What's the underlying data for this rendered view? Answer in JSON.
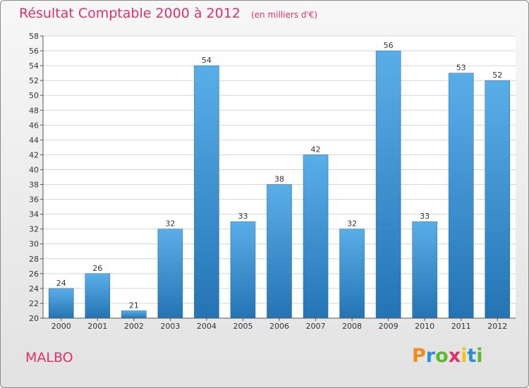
{
  "title": "Résultat Comptable 2000 à 2012",
  "subtitle": "(en milliers d'€)",
  "place": "MALBO",
  "logo": {
    "text": "Proxiti",
    "colors": [
      "#f28a1c",
      "#2b8fd6",
      "#5cb82e",
      "#e0306e",
      "#f2c40f",
      "#2b8fd6",
      "#5cb82e"
    ]
  },
  "colors": {
    "title": "#e0306e",
    "bar_light": "#5aaee8",
    "bar_dark": "#2474b4"
  },
  "chart_data": {
    "type": "bar",
    "title": "Résultat Comptable 2000 à 2012",
    "xlabel": "",
    "ylabel": "",
    "categories": [
      "2000",
      "2001",
      "2002",
      "2003",
      "2004",
      "2005",
      "2006",
      "2007",
      "2008",
      "2009",
      "2010",
      "2011",
      "2012"
    ],
    "values": [
      24,
      26,
      21,
      32,
      54,
      33,
      38,
      42,
      32,
      56,
      33,
      53,
      52
    ],
    "ylim": [
      20,
      58
    ],
    "yticks": [
      20,
      22,
      24,
      26,
      28,
      30,
      32,
      34,
      36,
      38,
      40,
      42,
      44,
      46,
      48,
      50,
      52,
      54,
      56,
      58
    ],
    "grid": true
  }
}
